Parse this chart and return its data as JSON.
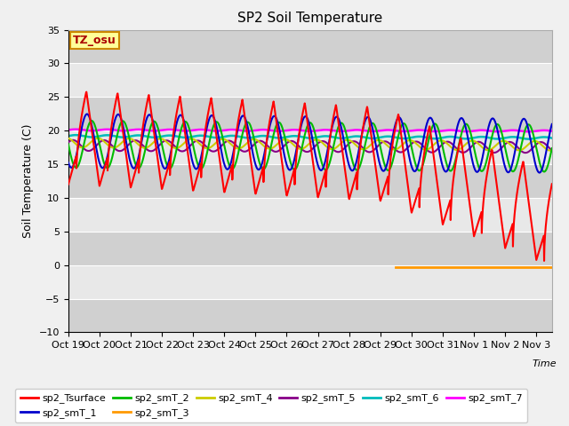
{
  "title": "SP2 Soil Temperature",
  "ylabel": "Soil Temperature (C)",
  "xlabel": "Time",
  "ylim": [
    -10,
    35
  ],
  "yticks": [
    -10,
    -5,
    0,
    5,
    10,
    15,
    20,
    25,
    30,
    35
  ],
  "xtick_labels": [
    "Oct 19",
    "Oct 20",
    "Oct 21",
    "Oct 22",
    "Oct 23",
    "Oct 24",
    "Oct 25",
    "Oct 26",
    "Oct 27",
    "Oct 28",
    "Oct 29",
    "Oct 30",
    "Oct 31",
    "Nov 1",
    "Nov 2",
    "Nov 3"
  ],
  "xtick_positions": [
    0,
    1,
    2,
    3,
    4,
    5,
    6,
    7,
    8,
    9,
    10,
    11,
    12,
    13,
    14,
    15
  ],
  "annotation_text": "TZ_osu",
  "fig_bg": "#f0f0f0",
  "plot_bg_light": "#e8e8e8",
  "plot_bg_dark": "#d0d0d0",
  "series_colors": {
    "sp2_Tsurface": "#ff0000",
    "sp2_smT_1": "#0000cc",
    "sp2_smT_2": "#00bb00",
    "sp2_smT_3": "#ff9900",
    "sp2_smT_4": "#cccc00",
    "sp2_smT_5": "#880088",
    "sp2_smT_6": "#00bbbb",
    "sp2_smT_7": "#ff00ff"
  }
}
